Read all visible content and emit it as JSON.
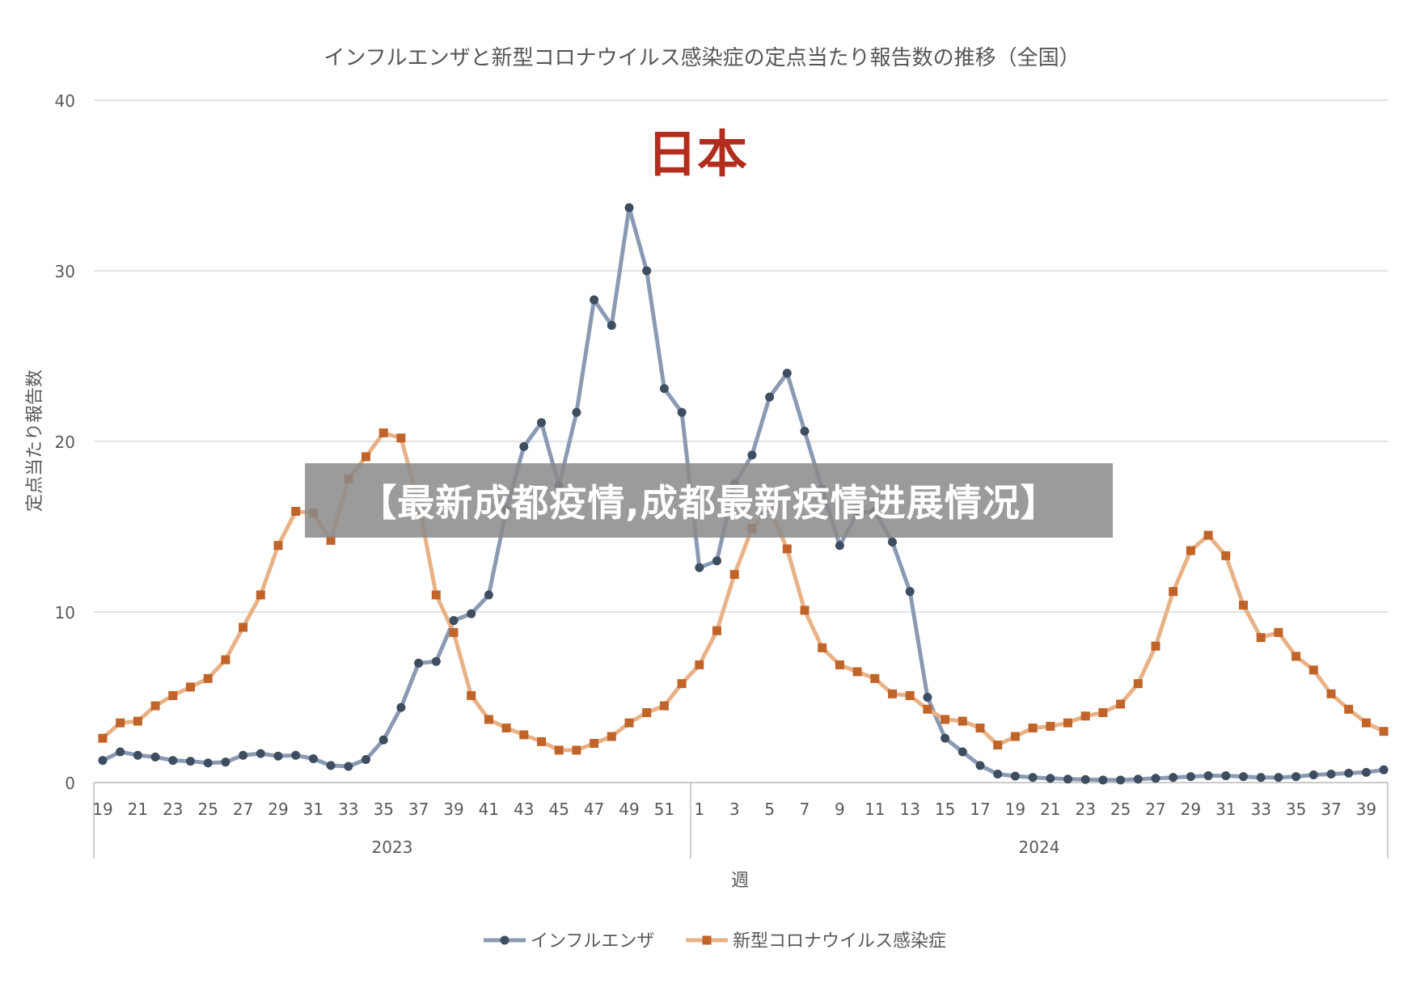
{
  "chart_data": {
    "type": "line",
    "title": "インフルエンザと新型コロナウイルス感染症の定点当たり報告数の推移（全国）",
    "subtitle": "日本",
    "xlabel": "週",
    "ylabel": "定点当たり報告数",
    "ylim": [
      0,
      40
    ],
    "yticks": [
      0,
      10,
      20,
      30,
      40
    ],
    "grid": true,
    "legend_position": "bottom",
    "year_groups": [
      {
        "label": "2023",
        "weeks": "19-52"
      },
      {
        "label": "2024",
        "weeks": "1-40"
      }
    ],
    "x": [
      {
        "year": 2023,
        "week": 19
      },
      {
        "year": 2023,
        "week": 20
      },
      {
        "year": 2023,
        "week": 21
      },
      {
        "year": 2023,
        "week": 22
      },
      {
        "year": 2023,
        "week": 23
      },
      {
        "year": 2023,
        "week": 24
      },
      {
        "year": 2023,
        "week": 25
      },
      {
        "year": 2023,
        "week": 26
      },
      {
        "year": 2023,
        "week": 27
      },
      {
        "year": 2023,
        "week": 28
      },
      {
        "year": 2023,
        "week": 29
      },
      {
        "year": 2023,
        "week": 30
      },
      {
        "year": 2023,
        "week": 31
      },
      {
        "year": 2023,
        "week": 32
      },
      {
        "year": 2023,
        "week": 33
      },
      {
        "year": 2023,
        "week": 34
      },
      {
        "year": 2023,
        "week": 35
      },
      {
        "year": 2023,
        "week": 36
      },
      {
        "year": 2023,
        "week": 37
      },
      {
        "year": 2023,
        "week": 38
      },
      {
        "year": 2023,
        "week": 39
      },
      {
        "year": 2023,
        "week": 40
      },
      {
        "year": 2023,
        "week": 41
      },
      {
        "year": 2023,
        "week": 42
      },
      {
        "year": 2023,
        "week": 43
      },
      {
        "year": 2023,
        "week": 44
      },
      {
        "year": 2023,
        "week": 45
      },
      {
        "year": 2023,
        "week": 46
      },
      {
        "year": 2023,
        "week": 47
      },
      {
        "year": 2023,
        "week": 48
      },
      {
        "year": 2023,
        "week": 49
      },
      {
        "year": 2023,
        "week": 50
      },
      {
        "year": 2023,
        "week": 51
      },
      {
        "year": 2023,
        "week": 52
      },
      {
        "year": 2024,
        "week": 1
      },
      {
        "year": 2024,
        "week": 2
      },
      {
        "year": 2024,
        "week": 3
      },
      {
        "year": 2024,
        "week": 4
      },
      {
        "year": 2024,
        "week": 5
      },
      {
        "year": 2024,
        "week": 6
      },
      {
        "year": 2024,
        "week": 7
      },
      {
        "year": 2024,
        "week": 8
      },
      {
        "year": 2024,
        "week": 9
      },
      {
        "year": 2024,
        "week": 10
      },
      {
        "year": 2024,
        "week": 11
      },
      {
        "year": 2024,
        "week": 12
      },
      {
        "year": 2024,
        "week": 13
      },
      {
        "year": 2024,
        "week": 14
      },
      {
        "year": 2024,
        "week": 15
      },
      {
        "year": 2024,
        "week": 16
      },
      {
        "year": 2024,
        "week": 17
      },
      {
        "year": 2024,
        "week": 18
      },
      {
        "year": 2024,
        "week": 19
      },
      {
        "year": 2024,
        "week": 20
      },
      {
        "year": 2024,
        "week": 21
      },
      {
        "year": 2024,
        "week": 22
      },
      {
        "year": 2024,
        "week": 23
      },
      {
        "year": 2024,
        "week": 24
      },
      {
        "year": 2024,
        "week": 25
      },
      {
        "year": 2024,
        "week": 26
      },
      {
        "year": 2024,
        "week": 27
      },
      {
        "year": 2024,
        "week": 28
      },
      {
        "year": 2024,
        "week": 29
      },
      {
        "year": 2024,
        "week": 30
      },
      {
        "year": 2024,
        "week": 31
      },
      {
        "year": 2024,
        "week": 32
      },
      {
        "year": 2024,
        "week": 33
      },
      {
        "year": 2024,
        "week": 34
      },
      {
        "year": 2024,
        "week": 35
      },
      {
        "year": 2024,
        "week": 36
      },
      {
        "year": 2024,
        "week": 37
      },
      {
        "year": 2024,
        "week": 38
      },
      {
        "year": 2024,
        "week": 39
      },
      {
        "year": 2024,
        "week": 40
      }
    ],
    "tick_labels": [
      "19",
      "21",
      "23",
      "25",
      "27",
      "29",
      "31",
      "33",
      "35",
      "37",
      "39",
      "41",
      "43",
      "45",
      "47",
      "49",
      "51",
      "1",
      "3",
      "5",
      "7",
      "9",
      "11",
      "13",
      "15",
      "17",
      "19",
      "21",
      "23",
      "25",
      "27",
      "29",
      "31",
      "33",
      "35",
      "37",
      "39"
    ],
    "series": [
      {
        "name": "インフルエンザ",
        "color": "#8a9ab3",
        "marker_color": "#3f4d60",
        "marker": "circle",
        "values": [
          1.3,
          1.8,
          1.6,
          1.5,
          1.3,
          1.25,
          1.15,
          1.2,
          1.6,
          1.7,
          1.55,
          1.6,
          1.4,
          1.0,
          0.95,
          1.35,
          2.5,
          4.4,
          7.0,
          7.1,
          9.5,
          9.9,
          11.0,
          16.0,
          19.7,
          21.1,
          17.4,
          21.7,
          28.3,
          26.8,
          33.7,
          30.0,
          23.1,
          21.7,
          12.6,
          13.0,
          17.5,
          19.2,
          22.6,
          24.0,
          20.6,
          17.2,
          13.9,
          15.8,
          15.9,
          14.1,
          11.2,
          5.0,
          2.6,
          1.8,
          1.0,
          0.5,
          0.38,
          0.3,
          0.25,
          0.2,
          0.18,
          0.15,
          0.15,
          0.2,
          0.25,
          0.3,
          0.35,
          0.4,
          0.4,
          0.35,
          0.3,
          0.3,
          0.35,
          0.45,
          0.5,
          0.55,
          0.6,
          0.75
        ]
      },
      {
        "name": "新型コロナウイルス感染症",
        "color": "#e9b286",
        "marker_color": "#c0642a",
        "marker": "square",
        "values": [
          2.6,
          3.5,
          3.6,
          4.5,
          5.1,
          5.6,
          6.1,
          7.2,
          9.1,
          11.0,
          13.9,
          15.9,
          15.8,
          14.2,
          17.8,
          19.1,
          20.5,
          20.2,
          16.4,
          11.0,
          8.8,
          5.1,
          3.7,
          3.2,
          2.8,
          2.4,
          1.9,
          1.9,
          2.3,
          2.7,
          3.5,
          4.1,
          4.5,
          5.8,
          6.9,
          8.9,
          12.2,
          14.9,
          16.1,
          13.7,
          10.1,
          7.9,
          6.9,
          6.5,
          6.1,
          5.2,
          5.1,
          4.3,
          3.7,
          3.6,
          3.2,
          2.2,
          2.7,
          3.2,
          3.3,
          3.5,
          3.9,
          4.1,
          4.6,
          5.8,
          8.0,
          11.2,
          13.6,
          14.5,
          13.3,
          10.4,
          8.5,
          8.8,
          7.4,
          6.6,
          5.2,
          4.3,
          3.5,
          3.0
        ]
      }
    ]
  },
  "overlay": {
    "banner_text": "【最新成都疫情,成都最新疫情进展情况】"
  }
}
